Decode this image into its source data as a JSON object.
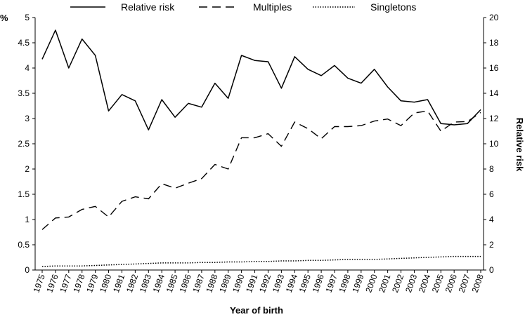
{
  "chart_data": {
    "type": "line",
    "x_label": "Year of birth",
    "y_left_label": "%",
    "y_right_label": "Relative risk",
    "y_left_range": [
      0,
      5
    ],
    "y_left_ticks": [
      "0",
      "0.5",
      "1",
      "1.5",
      "2",
      "2.5",
      "3",
      "3.5",
      "4",
      "4.5",
      "5"
    ],
    "y_right_range": [
      0,
      20
    ],
    "y_right_ticks": [
      "0",
      "2",
      "4",
      "6",
      "8",
      "10",
      "12",
      "14",
      "16",
      "18",
      "20"
    ],
    "x": [
      "1975",
      "1976",
      "1977",
      "1978",
      "1979",
      "1980",
      "1981",
      "1982",
      "1983",
      "1984",
      "1985",
      "1986",
      "1987",
      "1988",
      "1989",
      "1990",
      "1991",
      "1992",
      "1993",
      "1994",
      "1995",
      "1996",
      "1997",
      "1998",
      "1999",
      "2000",
      "2001",
      "2002",
      "2003",
      "2004",
      "2005",
      "2006",
      "2007",
      "2008"
    ],
    "grid": false,
    "legend_position": "top",
    "series": [
      {
        "name": "Relative risk",
        "axis": "right",
        "style": "solid",
        "values": [
          16.7,
          19.0,
          16.0,
          18.3,
          17.0,
          12.6,
          13.9,
          13.4,
          11.1,
          13.5,
          12.1,
          13.2,
          12.9,
          14.8,
          13.6,
          17.0,
          16.6,
          16.5,
          14.4,
          16.9,
          15.9,
          15.4,
          16.2,
          15.2,
          14.8,
          15.9,
          14.5,
          13.4,
          13.3,
          13.5,
          11.6,
          11.5,
          11.6,
          12.7
        ]
      },
      {
        "name": "Multiples",
        "axis": "left",
        "style": "dashed",
        "values": [
          0.8,
          1.03,
          1.05,
          1.2,
          1.26,
          1.05,
          1.36,
          1.45,
          1.41,
          1.71,
          1.62,
          1.72,
          1.81,
          2.09,
          2.0,
          2.62,
          2.62,
          2.7,
          2.45,
          2.93,
          2.8,
          2.6,
          2.84,
          2.84,
          2.86,
          2.95,
          2.99,
          2.86,
          3.11,
          3.15,
          2.75,
          2.93,
          2.94,
          3.12
        ]
      },
      {
        "name": "Singletons",
        "axis": "left",
        "style": "dotted",
        "values": [
          0.07,
          0.08,
          0.08,
          0.08,
          0.09,
          0.1,
          0.11,
          0.12,
          0.13,
          0.14,
          0.14,
          0.14,
          0.15,
          0.15,
          0.16,
          0.16,
          0.17,
          0.17,
          0.18,
          0.18,
          0.19,
          0.19,
          0.2,
          0.21,
          0.21,
          0.21,
          0.22,
          0.23,
          0.24,
          0.25,
          0.26,
          0.27,
          0.27,
          0.27
        ]
      }
    ]
  }
}
